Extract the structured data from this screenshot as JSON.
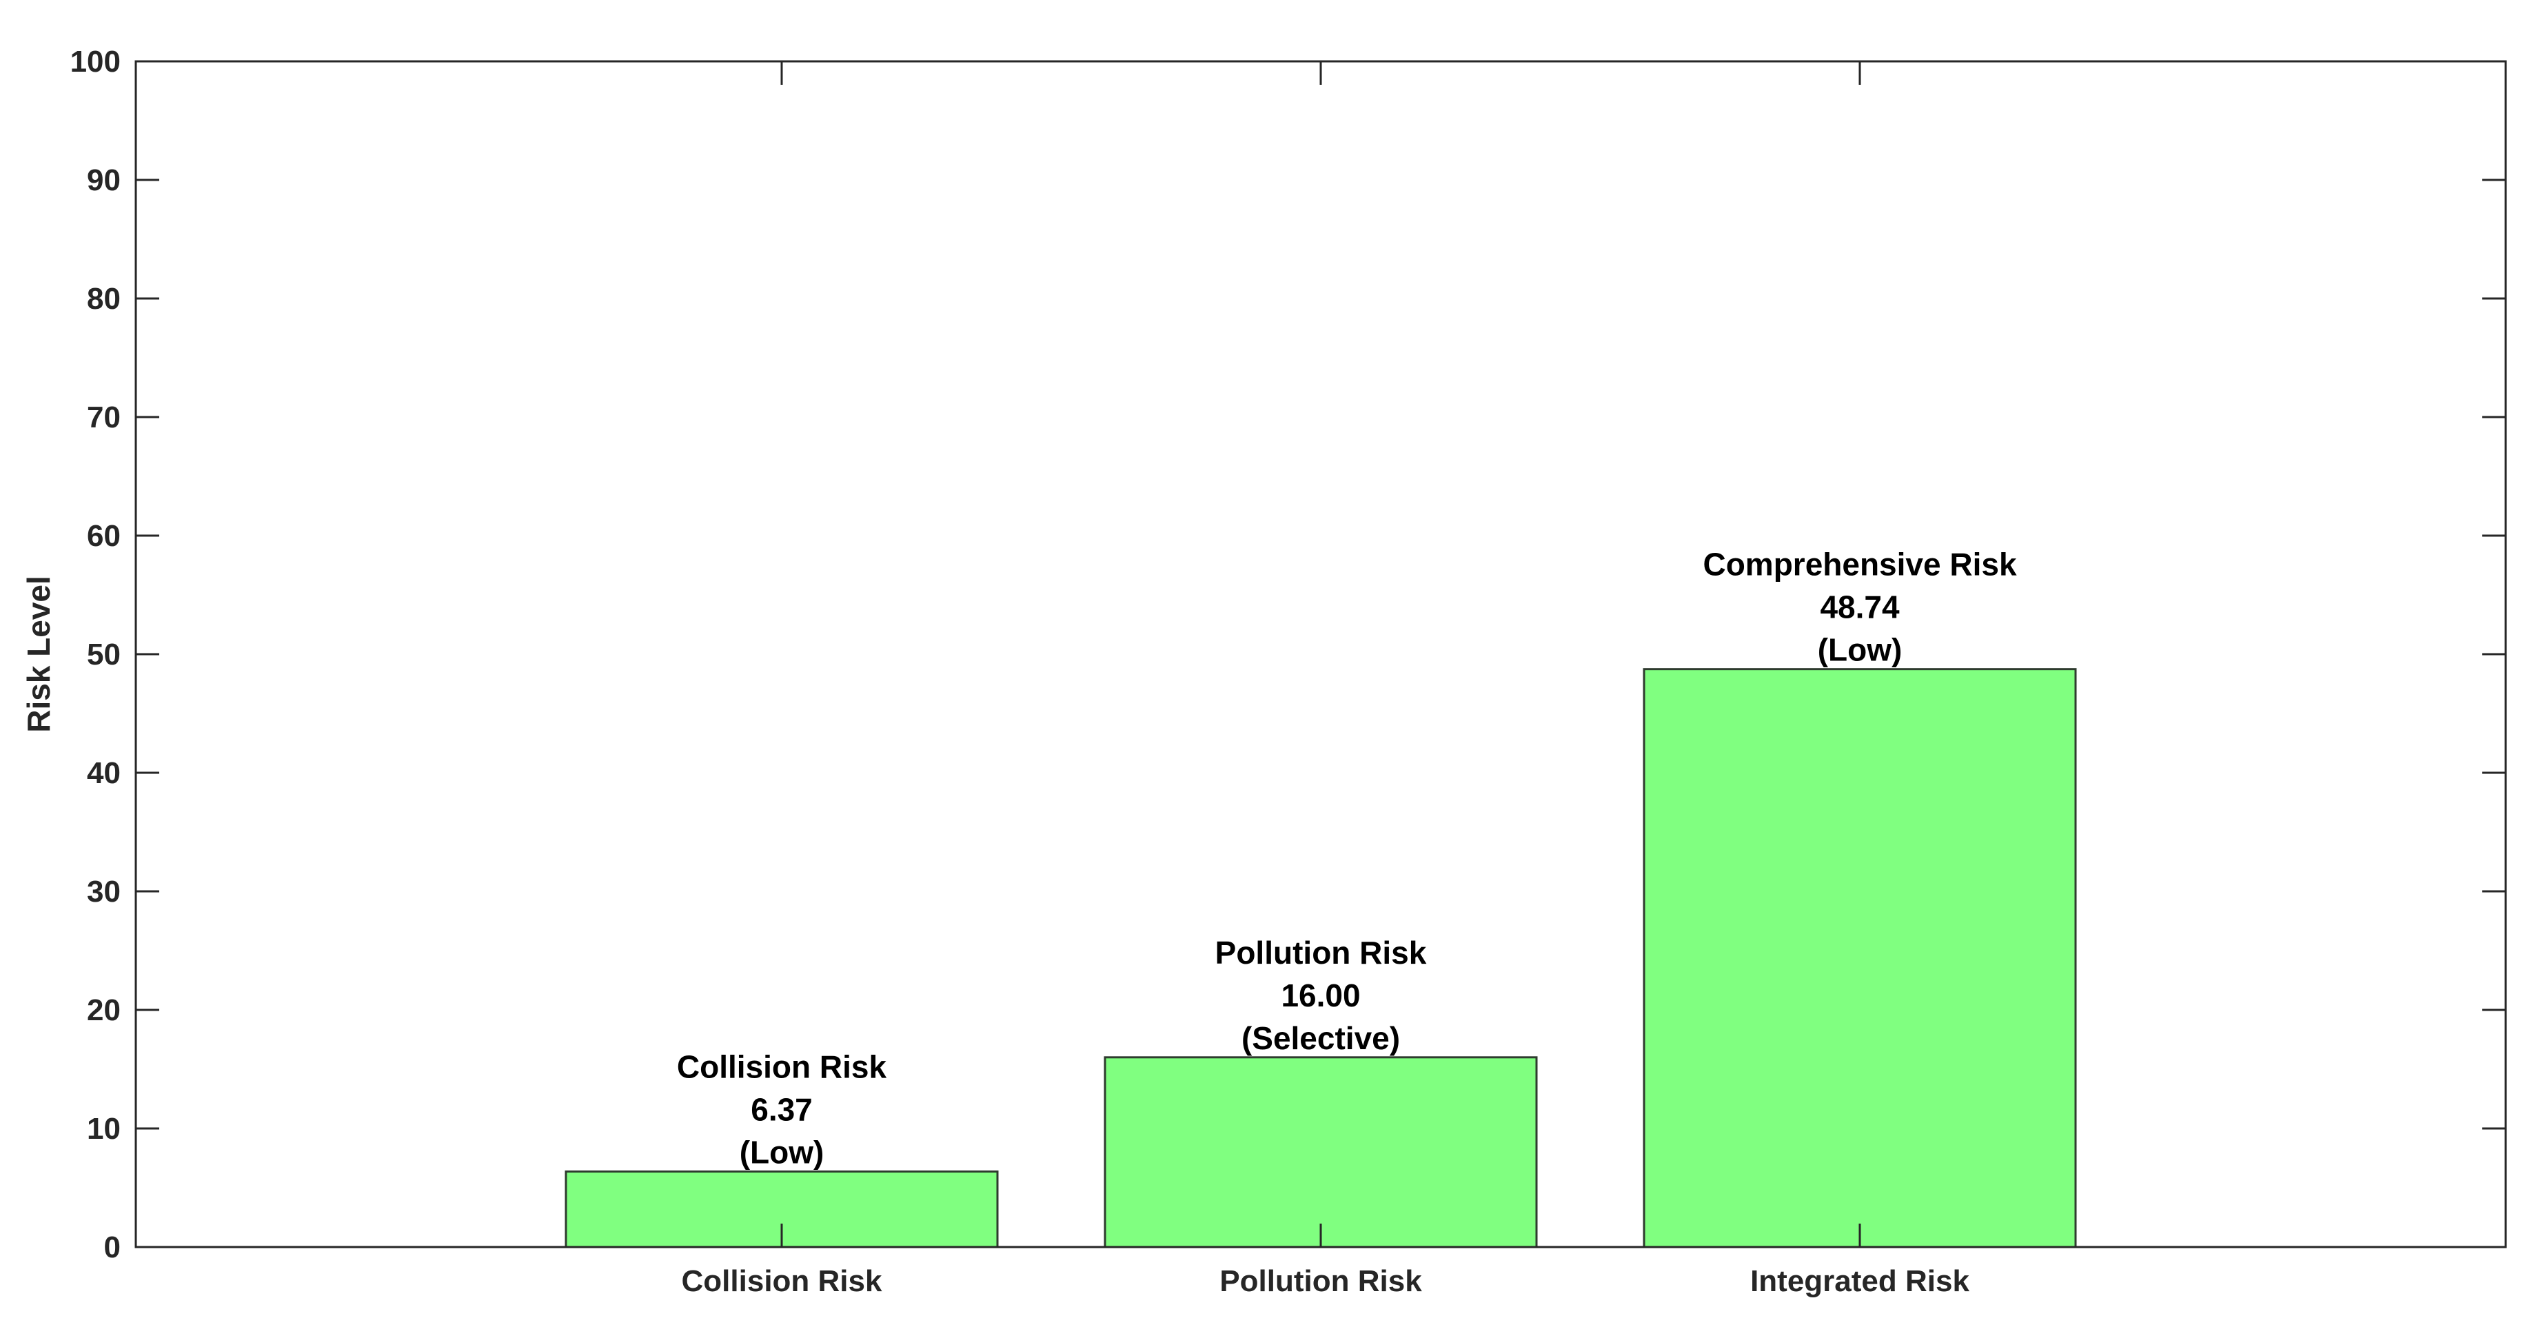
{
  "chart_data": {
    "type": "bar",
    "title": "",
    "xlabel": "",
    "ylabel": "Risk Level",
    "ylim": [
      0,
      100
    ],
    "yticks": [
      0,
      10,
      20,
      30,
      40,
      50,
      60,
      70,
      80,
      90,
      100
    ],
    "categories": [
      "Collision Risk",
      "Pollution Risk",
      "Integrated Risk"
    ],
    "values": [
      6.37,
      16.0,
      48.74
    ],
    "annotations": [
      {
        "name": "Collision Risk",
        "value": "6.37",
        "level": "(Low)"
      },
      {
        "name": "Pollution Risk",
        "value": "16.00",
        "level": "(Selective)"
      },
      {
        "name": "Comprehensive Risk",
        "value": "48.74",
        "level": "(Low)"
      }
    ],
    "grid": false,
    "legend": null,
    "colors": {
      "bar_fill": "#80FF80",
      "bar_edge": "#2E3B2E",
      "axis": "#262626"
    }
  }
}
